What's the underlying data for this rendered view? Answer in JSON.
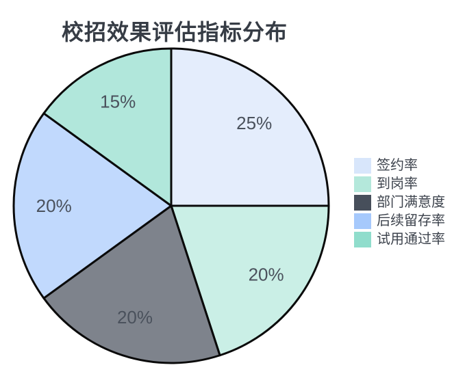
{
  "chart_data": {
    "type": "pie",
    "title": "校招效果评估指标分布",
    "categories": [
      "签约率",
      "到岗率",
      "部门满意度",
      "后续留存率",
      "试用通过率"
    ],
    "values": [
      25,
      20,
      20,
      20,
      15
    ],
    "pct_labels": [
      "25%",
      "20%",
      "20%",
      "20%",
      "15%"
    ],
    "colors": [
      "#d8e6fb",
      "#b4e8db",
      "#474f5b",
      "#a6c9fc",
      "#90ddcc"
    ],
    "start_angle": "top",
    "direction": "clockwise",
    "wedge_fill_opacity": 0.7,
    "wedge_edge_color": "#0a0a0a",
    "wedge_edge_width": 3,
    "label_distance_ratio": 0.745,
    "legend_position": "right",
    "background": "#ffffff",
    "title_color": "#363c45",
    "pct_label_color": "#4a515c",
    "legend_text_color": "#3d434d"
  }
}
